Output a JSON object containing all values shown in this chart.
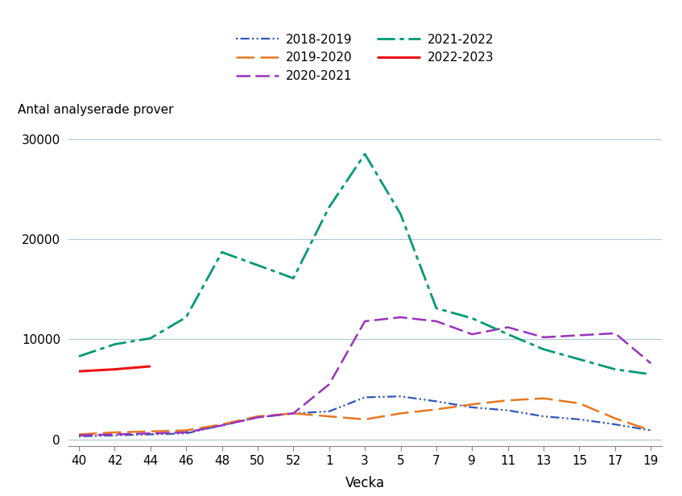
{
  "title": "",
  "ylabel": "Antal analyserade prover",
  "xlabel": "Vecka",
  "xtick_labels": [
    "40",
    "42",
    "44",
    "46",
    "48",
    "50",
    "52",
    "1",
    "3",
    "5",
    "7",
    "9",
    "11",
    "13",
    "15",
    "17",
    "19"
  ],
  "ytick_labels": [
    "0",
    "10000",
    "20000",
    "30000"
  ],
  "ylim": [
    -700,
    32000
  ],
  "series": {
    "2018-2019": {
      "color": "#3355bb",
      "linewidth": 1.6,
      "values": [
        300,
        400,
        500,
        600,
        1400,
        2200,
        2600,
        2800,
        4200,
        4300,
        3800,
        3200,
        2900,
        2300,
        2000,
        1500,
        900
      ]
    },
    "2019-2020": {
      "color": "#e87820",
      "linewidth": 1.8,
      "values": [
        500,
        700,
        800,
        900,
        1500,
        2300,
        2600,
        2300,
        2000,
        2600,
        3000,
        3500,
        3900,
        4100,
        3600,
        2100,
        900
      ]
    },
    "2020-2021": {
      "color": "#9933bb",
      "linewidth": 1.8,
      "values": [
        400,
        500,
        600,
        700,
        1400,
        2200,
        2600,
        5500,
        11800,
        12200,
        11800,
        10500,
        11200,
        10200,
        10400,
        10600,
        7600
      ]
    },
    "2021-2022": {
      "color": "#009977",
      "linewidth": 2.0,
      "values": [
        8300,
        9500,
        10100,
        12200,
        18700,
        17400,
        16100,
        23200,
        28500,
        22500,
        13100,
        12100,
        10500,
        9000,
        8000,
        7000,
        6500
      ]
    },
    "2022-2023": {
      "color": "#ee1111",
      "linewidth": 2.2,
      "values": [
        6800,
        7000,
        7300,
        null,
        null,
        null,
        null,
        null,
        null,
        null,
        null,
        null,
        null,
        null,
        null,
        null,
        null
      ]
    }
  },
  "legend_order": [
    "2018-2019",
    "2019-2020",
    "2020-2021",
    "2021-2022",
    "2022-2023"
  ],
  "background_color": "#ffffff",
  "grid_color": "#b0c8d8"
}
